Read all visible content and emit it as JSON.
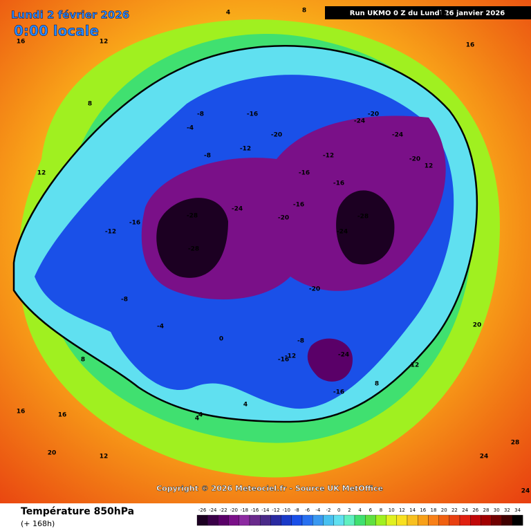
{
  "header": {
    "title": "Lundi 2 février 2026",
    "subtitle": "0:00 locale",
    "run": "Run UKMO 0 Z du Lundi 26 janvier 2026"
  },
  "copyright": "Copyright © 2026 Meteociel.fr - Source UK MetOffice",
  "footer": {
    "variable": "Température 850hPa",
    "lead": "(+ 168h)"
  },
  "legend": {
    "ticks": [
      -26,
      -24,
      -22,
      -20,
      -18,
      -16,
      -14,
      -12,
      -10,
      -8,
      -6,
      -4,
      -2,
      0,
      2,
      4,
      6,
      8,
      10,
      12,
      14,
      16,
      18,
      20,
      22,
      24,
      26,
      28,
      30,
      32,
      34
    ],
    "colors": [
      "#1c0022",
      "#3a0048",
      "#5a0068",
      "#7a1088",
      "#8c2aa0",
      "#6a2a8c",
      "#4a2a88",
      "#2a2aa0",
      "#1a3ac8",
      "#1a50e8",
      "#2870f0",
      "#3a98f0",
      "#48c0f0",
      "#60e0f0",
      "#60f0c0",
      "#40e070",
      "#60e040",
      "#a0f020",
      "#e0f020",
      "#f8e020",
      "#f8c020",
      "#f8a018",
      "#f88018",
      "#f06010",
      "#e84010",
      "#e02010",
      "#c00808",
      "#a00000",
      "#700000",
      "#400000",
      "#000000"
    ]
  },
  "map": {
    "labels": [
      16,
      12,
      4,
      8,
      12,
      16,
      4,
      8,
      16,
      12,
      -8,
      -16,
      -20,
      -24,
      -20,
      -16,
      -12,
      -8,
      -4,
      -28,
      -28,
      -24,
      -20,
      -24,
      -20,
      -16,
      -12,
      -16,
      -24,
      -28,
      -16,
      -12,
      -8,
      -4,
      0,
      -12,
      -16,
      -24,
      -20,
      -16,
      -8,
      4,
      8,
      12,
      16,
      20,
      24,
      28,
      12,
      8,
      4,
      16,
      20,
      24
    ]
  }
}
